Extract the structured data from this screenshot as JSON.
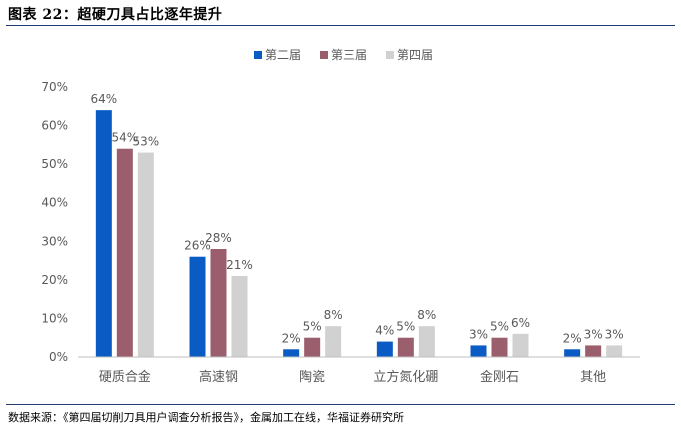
{
  "figure": {
    "title": "图表 22：超硬刀具占比逐年提升",
    "source": "数据来源：《第四届切削刀具用户调查分析报告》，金属加工在线，华福证券研究所"
  },
  "colors": {
    "series": [
      "#0a5cc4",
      "#9b5e6c",
      "#d1d1d1"
    ],
    "axis_text": "#595959",
    "axis_line": "#bfbfbf",
    "rule": "#1f3a6e"
  },
  "chart_data": {
    "type": "bar",
    "title": "",
    "xlabel": "",
    "ylabel": "",
    "categories": [
      "硬质合金",
      "高速钢",
      "陶瓷",
      "立方氮化硼",
      "金刚石",
      "其他"
    ],
    "series": [
      {
        "name": "第二届",
        "values": [
          64,
          26,
          2,
          4,
          3,
          2
        ]
      },
      {
        "name": "第三届",
        "values": [
          54,
          28,
          5,
          5,
          5,
          3
        ]
      },
      {
        "name": "第四届",
        "values": [
          53,
          21,
          8,
          8,
          6,
          3
        ]
      }
    ],
    "ylim": [
      0,
      70
    ],
    "yticks": [
      "0%",
      "10%",
      "20%",
      "30%",
      "40%",
      "50%",
      "60%",
      "70%"
    ],
    "value_suffix": "%",
    "legend_position": "top-center",
    "grid": false
  }
}
